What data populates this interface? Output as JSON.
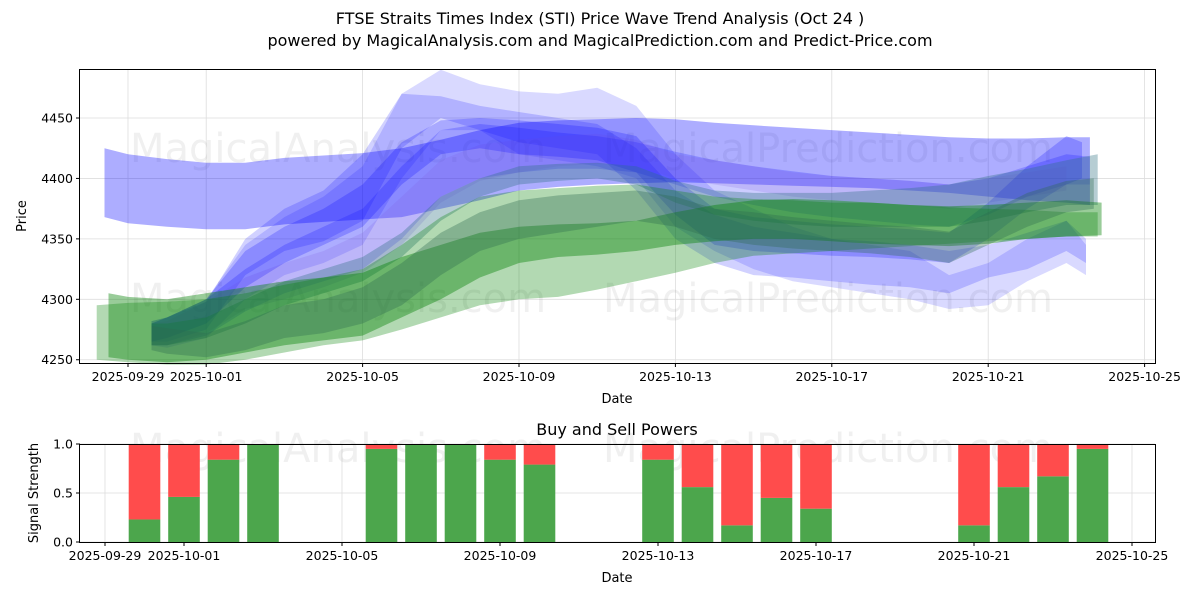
{
  "header": {
    "title": "FTSE Straits Times Index (STI) Price Wave Trend Analysis (Oct 24 )",
    "subtitle": "powered by MagicalAnalysis.com and MagicalPrediction.com and Predict-Price.com"
  },
  "watermarks": [
    "MagicalAnalysis.com",
    "MagicalPrediction.com"
  ],
  "colors": {
    "blue_band": "#0000ff",
    "green_band": "#008000",
    "buy": "#4ca64c",
    "sell": "#ff4c4c",
    "grid": "#dddddd"
  },
  "chart_data": [
    {
      "type": "area",
      "title": "",
      "xlabel": "Date",
      "ylabel": "Price",
      "ylim": [
        4248,
        4490
      ],
      "xlim": [
        "2025-09-28.3",
        "2025-10-25.3"
      ],
      "grid": true,
      "x_ticks": [
        "2025-09-29",
        "2025-10-01",
        "2025-10-05",
        "2025-10-09",
        "2025-10-13",
        "2025-10-17",
        "2025-10-21",
        "2025-10-25"
      ],
      "y_ticks": [
        4250,
        4300,
        4350,
        4400,
        4450
      ],
      "series": [
        {
          "name": "blue-wide-top",
          "color": "blue",
          "opacity": 0.32,
          "x": [
            -0.6,
            0,
            1,
            2,
            3,
            4,
            5,
            6,
            7,
            8,
            9,
            10,
            11,
            12,
            13,
            14,
            15,
            16,
            17,
            18,
            19,
            20,
            21,
            22,
            23,
            24,
            24.6
          ],
          "low": [
            4368,
            4363,
            4360,
            4358,
            4358,
            4362,
            4364,
            4366,
            4368,
            4375,
            4382,
            4390,
            4393,
            4395,
            4396,
            4397,
            4396,
            4395,
            4394,
            4393,
            4392,
            4390,
            4388,
            4385,
            4382,
            4380,
            4378
          ],
          "high": [
            4425,
            4420,
            4416,
            4413,
            4413,
            4417,
            4419,
            4421,
            4425,
            4432,
            4440,
            4446,
            4448,
            4449,
            4450,
            4449,
            4446,
            4444,
            4442,
            4440,
            4438,
            4436,
            4434,
            4433,
            4433,
            4434,
            4434
          ]
        },
        {
          "name": "blue-peak-1",
          "color": "blue",
          "opacity": 0.15,
          "x": [
            0.6,
            1,
            2,
            3,
            4,
            5,
            6,
            7,
            8,
            9,
            10,
            11,
            12,
            13,
            14,
            15,
            16,
            17,
            18,
            19,
            20,
            21,
            22,
            23,
            24,
            24.5
          ],
          "low": [
            4262,
            4260,
            4268,
            4300,
            4320,
            4330,
            4345,
            4400,
            4440,
            4440,
            4420,
            4415,
            4410,
            4400,
            4360,
            4340,
            4325,
            4315,
            4310,
            4305,
            4300,
            4292,
            4295,
            4315,
            4330,
            4320
          ],
          "high": [
            4282,
            4285,
            4300,
            4345,
            4368,
            4385,
            4410,
            4470,
            4490,
            4478,
            4472,
            4470,
            4475,
            4460,
            4420,
            4390,
            4375,
            4360,
            4350,
            4345,
            4340,
            4320,
            4330,
            4350,
            4365,
            4345
          ]
        },
        {
          "name": "blue-peak-2",
          "color": "blue",
          "opacity": 0.18,
          "x": [
            0.6,
            1,
            2,
            3,
            4,
            5,
            6,
            7,
            8,
            9,
            10,
            11,
            12,
            13,
            14,
            15,
            16,
            17,
            18,
            19,
            20,
            21,
            22,
            23,
            24,
            24.5
          ],
          "low": [
            4265,
            4265,
            4275,
            4320,
            4340,
            4348,
            4365,
            4425,
            4450,
            4440,
            4430,
            4425,
            4420,
            4390,
            4350,
            4330,
            4320,
            4318,
            4315,
            4312,
            4310,
            4305,
            4318,
            4325,
            4340,
            4330
          ],
          "high": [
            4280,
            4285,
            4298,
            4350,
            4375,
            4390,
            4420,
            4470,
            4468,
            4460,
            4455,
            4450,
            4445,
            4425,
            4390,
            4370,
            4360,
            4355,
            4350,
            4348,
            4345,
            4340,
            4345,
            4355,
            4365,
            4350
          ]
        },
        {
          "name": "blue-mid-1",
          "color": "blue",
          "opacity": 0.2,
          "x": [
            0.6,
            1,
            2,
            3,
            4,
            5,
            6,
            7,
            8,
            9,
            10,
            11,
            12,
            13,
            14,
            15,
            16,
            17,
            18,
            19,
            20,
            21,
            22,
            23,
            24,
            24.6
          ],
          "low": [
            4262,
            4262,
            4270,
            4290,
            4305,
            4315,
            4325,
            4350,
            4385,
            4400,
            4405,
            4408,
            4408,
            4405,
            4395,
            4385,
            4378,
            4372,
            4368,
            4365,
            4362,
            4360,
            4370,
            4385,
            4395,
            4395
          ],
          "high": [
            4282,
            4285,
            4300,
            4325,
            4345,
            4360,
            4375,
            4410,
            4440,
            4445,
            4442,
            4438,
            4435,
            4430,
            4422,
            4415,
            4410,
            4406,
            4402,
            4400,
            4398,
            4395,
            4400,
            4410,
            4420,
            4418
          ]
        },
        {
          "name": "blue-purple",
          "color": "#8060e0",
          "opacity": 0.2,
          "x": [
            0.6,
            1,
            2,
            3,
            4,
            5,
            6,
            7,
            8,
            9,
            10,
            11,
            12,
            13,
            14,
            15,
            16,
            17,
            18,
            19,
            20,
            21,
            22,
            23,
            24
          ],
          "low": [
            4262,
            4262,
            4272,
            4292,
            4300,
            4310,
            4322,
            4345,
            4380,
            4398,
            4405,
            4410,
            4412,
            4410,
            4400,
            4395,
            4390,
            4385,
            4382,
            4380,
            4378,
            4375,
            4380,
            4385,
            4390
          ],
          "high": [
            4280,
            4282,
            4298,
            4318,
            4330,
            4340,
            4355,
            4385,
            4415,
            4428,
            4432,
            4435,
            4437,
            4432,
            4420,
            4415,
            4410,
            4405,
            4402,
            4400,
            4398,
            4395,
            4400,
            4405,
            4410
          ]
        },
        {
          "name": "blue-drop",
          "color": "blue",
          "opacity": 0.22,
          "x": [
            0.6,
            1,
            2,
            3,
            4,
            5,
            6,
            7,
            8,
            9,
            10,
            11,
            12,
            13,
            14,
            15,
            16,
            17,
            18,
            19,
            20,
            21,
            22,
            23,
            24,
            24.4
          ],
          "low": [
            4265,
            4268,
            4280,
            4310,
            4330,
            4345,
            4360,
            4395,
            4420,
            4425,
            4420,
            4418,
            4415,
            4405,
            4370,
            4345,
            4340,
            4338,
            4336,
            4335,
            4333,
            4330,
            4350,
            4375,
            4395,
            4400
          ],
          "high": [
            4280,
            4285,
            4300,
            4340,
            4360,
            4375,
            4395,
            4430,
            4448,
            4450,
            4448,
            4445,
            4442,
            4435,
            4400,
            4375,
            4368,
            4365,
            4362,
            4360,
            4358,
            4355,
            4380,
            4410,
            4435,
            4430
          ]
        },
        {
          "name": "teal-band",
          "color": "#2f6f80",
          "opacity": 0.35,
          "x": [
            0.6,
            1,
            2,
            3,
            4,
            5,
            6,
            7,
            8,
            9,
            10,
            11,
            12,
            13,
            14,
            15,
            16,
            17,
            18,
            19,
            20,
            21,
            22,
            23,
            24,
            24.8
          ],
          "low": [
            4262,
            4262,
            4268,
            4280,
            4295,
            4305,
            4315,
            4335,
            4365,
            4385,
            4395,
            4398,
            4400,
            4395,
            4380,
            4370,
            4365,
            4362,
            4360,
            4360,
            4360,
            4360,
            4365,
            4372,
            4378,
            4378
          ],
          "high": [
            4280,
            4280,
            4285,
            4300,
            4315,
            4325,
            4335,
            4355,
            4385,
            4400,
            4410,
            4412,
            4413,
            4410,
            4398,
            4390,
            4388,
            4388,
            4388,
            4390,
            4392,
            4395,
            4402,
            4408,
            4415,
            4420
          ]
        },
        {
          "name": "green-wide",
          "color": "green",
          "opacity": 0.3,
          "x": [
            -0.8,
            0,
            1,
            2,
            3,
            4,
            5,
            6,
            7,
            8,
            9,
            10,
            11,
            12,
            13,
            14,
            15,
            16,
            17,
            18,
            19,
            20,
            21,
            22,
            23,
            24,
            24.8
          ],
          "low": [
            4250,
            4248,
            4246,
            4246,
            4250,
            4256,
            4262,
            4266,
            4275,
            4285,
            4295,
            4300,
            4302,
            4308,
            4315,
            4322,
            4330,
            4336,
            4338,
            4340,
            4342,
            4344,
            4346,
            4348,
            4350,
            4352,
            4352
          ],
          "high": [
            4295,
            4297,
            4298,
            4300,
            4305,
            4312,
            4318,
            4325,
            4345,
            4368,
            4385,
            4390,
            4392,
            4394,
            4395,
            4390,
            4385,
            4383,
            4382,
            4380,
            4380,
            4378,
            4376,
            4375,
            4374,
            4372,
            4372
          ]
        },
        {
          "name": "green-core",
          "color": "green",
          "opacity": 0.4,
          "x": [
            -0.5,
            0,
            1,
            2,
            3,
            4,
            5,
            6,
            7,
            8,
            9,
            10,
            11,
            12,
            13,
            14,
            15,
            16,
            17,
            18,
            19,
            20,
            21,
            22,
            23,
            24,
            24.9
          ],
          "low": [
            4252,
            4250,
            4248,
            4250,
            4256,
            4262,
            4266,
            4270,
            4285,
            4300,
            4318,
            4330,
            4335,
            4337,
            4340,
            4345,
            4348,
            4350,
            4350,
            4348,
            4346,
            4345,
            4344,
            4346,
            4350,
            4352,
            4353
          ],
          "high": [
            4305,
            4302,
            4300,
            4305,
            4310,
            4315,
            4318,
            4322,
            4335,
            4345,
            4355,
            4360,
            4362,
            4363,
            4365,
            4372,
            4378,
            4382,
            4383,
            4382,
            4380,
            4378,
            4377,
            4378,
            4380,
            4382,
            4380
          ]
        },
        {
          "name": "green-dark",
          "color": "#2e6b50",
          "opacity": 0.35,
          "x": [
            0.6,
            1,
            2,
            3,
            4,
            5,
            6,
            7,
            8,
            9,
            10,
            11,
            12,
            13,
            14,
            15,
            16,
            17,
            18,
            19,
            20,
            21,
            22,
            23,
            24,
            24.7
          ],
          "low": [
            4258,
            4255,
            4252,
            4258,
            4268,
            4272,
            4280,
            4295,
            4320,
            4340,
            4350,
            4355,
            4360,
            4365,
            4360,
            4350,
            4345,
            4342,
            4340,
            4338,
            4335,
            4330,
            4345,
            4360,
            4372,
            4375
          ],
          "high": [
            4278,
            4276,
            4272,
            4282,
            4295,
            4300,
            4310,
            4330,
            4355,
            4372,
            4382,
            4386,
            4388,
            4390,
            4385,
            4375,
            4372,
            4368,
            4365,
            4362,
            4360,
            4356,
            4372,
            4388,
            4398,
            4400
          ]
        }
      ]
    },
    {
      "type": "bar",
      "title": "Buy and Sell Powers",
      "xlabel": "Date",
      "ylabel": "Signal Strength",
      "ylim": [
        0,
        1
      ],
      "grid": true,
      "x_ticks": [
        "2025-09-29",
        "2025-10-01",
        "2025-10-05",
        "2025-10-09",
        "2025-10-13",
        "2025-10-17",
        "2025-10-21",
        "2025-10-25"
      ],
      "y_ticks": [
        "0.0",
        "0.5",
        "1.0"
      ],
      "categories": [
        "2025-09-30",
        "2025-10-01",
        "2025-10-02",
        "2025-10-03",
        "2025-10-06",
        "2025-10-07",
        "2025-10-08",
        "2025-10-09",
        "2025-10-10",
        "2025-10-13",
        "2025-10-14",
        "2025-10-15",
        "2025-10-16",
        "2025-10-17",
        "2025-10-21",
        "2025-10-22",
        "2025-10-23",
        "2025-10-24"
      ],
      "series": [
        {
          "name": "Buy",
          "values": [
            0.23,
            0.46,
            0.84,
            1.0,
            0.95,
            1.0,
            1.0,
            0.84,
            0.79,
            0.84,
            0.56,
            0.17,
            0.45,
            0.34,
            0.17,
            0.56,
            0.67,
            0.95
          ]
        },
        {
          "name": "Sell",
          "values": [
            0.77,
            0.54,
            0.16,
            0.0,
            0.05,
            0.0,
            0.0,
            0.16,
            0.21,
            0.16,
            0.44,
            0.83,
            0.55,
            0.66,
            0.83,
            0.44,
            0.33,
            0.05
          ]
        }
      ]
    }
  ]
}
